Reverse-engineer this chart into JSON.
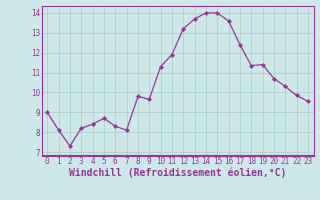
{
  "x": [
    0,
    1,
    2,
    3,
    4,
    5,
    6,
    7,
    8,
    9,
    10,
    11,
    12,
    13,
    14,
    15,
    16,
    17,
    18,
    19,
    20,
    21,
    22,
    23
  ],
  "y": [
    9.0,
    8.1,
    7.3,
    8.2,
    8.4,
    8.7,
    8.3,
    8.1,
    9.8,
    9.65,
    11.3,
    11.9,
    13.2,
    13.7,
    14.0,
    14.0,
    13.6,
    12.4,
    11.35,
    11.4,
    10.7,
    10.3,
    9.85,
    9.55
  ],
  "line_color": "#993399",
  "marker": "D",
  "marker_size": 2.0,
  "bg_color": "#cce8e8",
  "grid_color": "#aacccc",
  "xlabel": "Windchill (Refroidissement éolien,°C)",
  "xlabel_color": "#993399",
  "ylim": [
    6.8,
    14.35
  ],
  "xlim": [
    -0.5,
    23.5
  ],
  "yticks": [
    7,
    8,
    9,
    10,
    11,
    12,
    13,
    14
  ],
  "xticks": [
    0,
    1,
    2,
    3,
    4,
    5,
    6,
    7,
    8,
    9,
    10,
    11,
    12,
    13,
    14,
    15,
    16,
    17,
    18,
    19,
    20,
    21,
    22,
    23
  ],
  "tick_color": "#993399",
  "tick_fontsize": 5.5,
  "xlabel_fontsize": 7.0,
  "spine_color": "#993399",
  "linewidth": 0.9
}
